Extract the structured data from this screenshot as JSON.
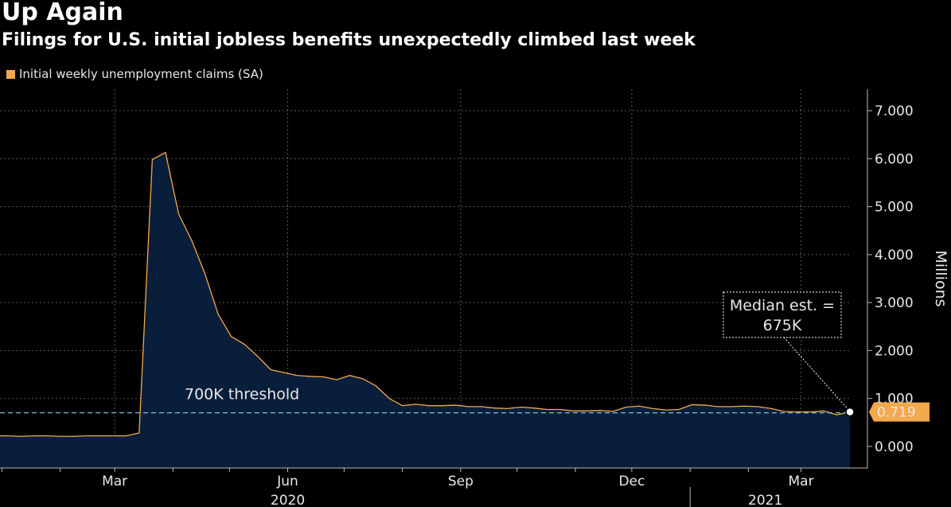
{
  "title": "Up Again",
  "subtitle": "Filings for U.S. initial jobless benefits unexpectedly climbed last week",
  "colors": {
    "line": "#f4a94c",
    "fill": "#081e3a",
    "threshold": "#8fd3e8",
    "grid": "#5a5a5a",
    "callout_bg": "#f4a94c"
  },
  "chart_data": {
    "type": "area",
    "legend": "Initial weekly unemployment claims (SA)",
    "ylabel": "Millions",
    "ylim": [
      -0.45,
      7.45
    ],
    "yticks": [
      0,
      1,
      2,
      3,
      4,
      5,
      6,
      7
    ],
    "ytick_labels": [
      "0.000",
      "1.000",
      "2.000",
      "3.000",
      "4.000",
      "5.000",
      "6.000",
      "7.000"
    ],
    "x_start": "2020-01-04",
    "x_end": "2021-03-20",
    "xlim": [
      "2019-12-31",
      "2021-03-27"
    ],
    "month_ticks": [
      "2020-01-01",
      "2020-02-01",
      "2020-03-01",
      "2020-04-01",
      "2020-05-01",
      "2020-06-01",
      "2020-07-01",
      "2020-08-01",
      "2020-09-01",
      "2020-10-01",
      "2020-11-01",
      "2020-12-01",
      "2021-01-01",
      "2021-02-01",
      "2021-03-01"
    ],
    "x_labels": [
      {
        "label": "Mar",
        "date": "2020-03-01"
      },
      {
        "label": "Jun",
        "date": "2020-06-01"
      },
      {
        "label": "Sep",
        "date": "2020-09-01"
      },
      {
        "label": "Dec",
        "date": "2020-12-01"
      },
      {
        "label": "Mar",
        "date": "2021-03-01"
      }
    ],
    "year_labels": [
      {
        "label": "2020",
        "date": "2020-06-01"
      },
      {
        "label": "2021",
        "date": "2021-02-10"
      }
    ],
    "year_divider": "2021-01-01",
    "values": [
      0.22,
      0.21,
      0.22,
      0.22,
      0.21,
      0.21,
      0.22,
      0.22,
      0.22,
      0.22,
      0.28,
      5.98,
      6.13,
      4.85,
      4.29,
      3.6,
      2.76,
      2.29,
      2.13,
      1.88,
      1.6,
      1.54,
      1.48,
      1.46,
      1.45,
      1.39,
      1.48,
      1.41,
      1.26,
      1.0,
      0.85,
      0.88,
      0.85,
      0.85,
      0.86,
      0.83,
      0.83,
      0.8,
      0.79,
      0.82,
      0.8,
      0.77,
      0.77,
      0.74,
      0.74,
      0.75,
      0.73,
      0.82,
      0.84,
      0.79,
      0.76,
      0.77,
      0.87,
      0.86,
      0.83,
      0.83,
      0.84,
      0.83,
      0.79,
      0.73,
      0.72,
      0.72,
      0.74,
      0.66,
      0.719
    ],
    "threshold": {
      "value": 0.7,
      "label": "700K threshold"
    },
    "last_value_label": "0.719",
    "annotation": {
      "line1": "Median est. =",
      "line2": "675K"
    }
  }
}
